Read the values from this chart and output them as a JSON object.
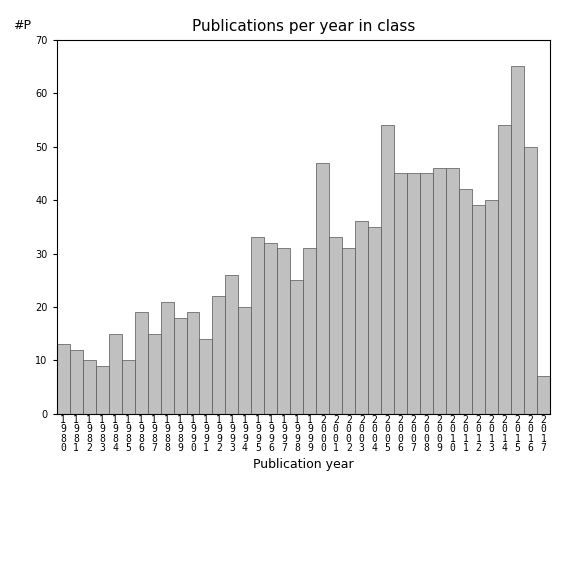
{
  "title": "Publications per year in class",
  "xlabel": "Publication year",
  "ylabel": "#P",
  "categories": [
    "1\n9\n8\n0",
    "1\n9\n8\n1",
    "1\n9\n8\n2",
    "1\n9\n8\n3",
    "1\n9\n8\n4",
    "1\n9\n8\n5",
    "1\n9\n8\n6",
    "1\n9\n8\n7",
    "1\n9\n8\n8",
    "1\n9\n8\n9",
    "1\n9\n9\n0",
    "1\n9\n9\n1",
    "1\n9\n9\n2",
    "1\n9\n9\n3",
    "1\n9\n9\n4",
    "1\n9\n9\n5",
    "1\n9\n9\n6",
    "1\n9\n9\n7",
    "1\n9\n9\n8",
    "1\n9\n9\n9",
    "2\n0\n0\n0",
    "2\n0\n0\n1",
    "2\n0\n0\n2",
    "2\n0\n0\n3",
    "2\n0\n0\n4",
    "2\n0\n0\n5",
    "2\n0\n0\n6",
    "2\n0\n0\n7",
    "2\n0\n0\n8",
    "2\n0\n0\n9",
    "2\n0\n1\n0",
    "2\n0\n1\n1",
    "2\n0\n1\n2",
    "2\n0\n1\n3",
    "2\n0\n1\n4",
    "2\n0\n1\n5",
    "2\n0\n1\n6",
    "2\n0\n1\n7"
  ],
  "values": [
    13,
    12,
    10,
    9,
    15,
    10,
    19,
    15,
    21,
    18,
    19,
    14,
    22,
    26,
    20,
    33,
    32,
    31,
    25,
    31,
    47,
    33,
    31,
    36,
    35,
    54,
    45,
    45,
    45,
    46,
    46,
    42,
    39,
    40,
    54,
    65,
    50,
    7
  ],
  "bar_color": "#c0c0c0",
  "bar_edgecolor": "#555555",
  "ylim": [
    0,
    70
  ],
  "yticks": [
    0,
    10,
    20,
    30,
    40,
    50,
    60,
    70
  ],
  "title_fontsize": 11,
  "xlabel_fontsize": 9,
  "ylabel_fontsize": 9,
  "tick_fontsize": 7,
  "background_color": "#ffffff"
}
